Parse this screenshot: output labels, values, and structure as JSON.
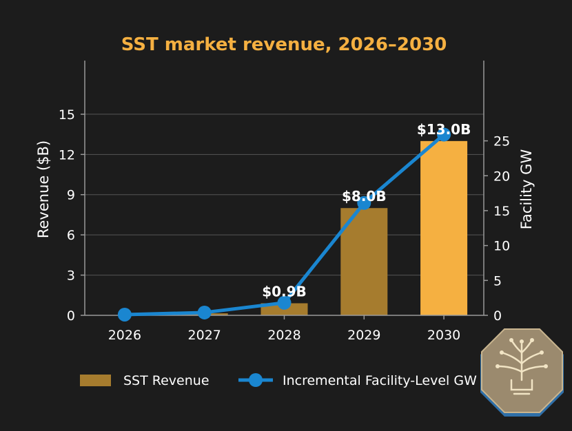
{
  "chart_data": {
    "type": "bar",
    "title": "SST market revenue, 2026–2030",
    "categories": [
      "2026",
      "2027",
      "2028",
      "2029",
      "2030"
    ],
    "ylabel": "Revenue ($B)",
    "y2label": "Facility GW",
    "ylim": [
      0,
      19
    ],
    "y2lim": [
      0,
      36.5
    ],
    "yticks": [
      0,
      3,
      6,
      9,
      12,
      15
    ],
    "y2ticks": [
      0,
      5,
      10,
      15,
      20,
      25
    ],
    "grid": true,
    "legend_position": "bottom",
    "series": [
      {
        "name": "SST Revenue",
        "type": "bar",
        "axis": "left",
        "values": [
          0.0,
          0.15,
          0.9,
          8.0,
          13.0
        ],
        "data_labels": [
          "",
          "",
          "$0.9B",
          "$8.0B",
          "$13.0B"
        ],
        "colors": [
          "#a67c2e",
          "#a67c2e",
          "#a67c2e",
          "#a67c2e",
          "#f5b041"
        ]
      },
      {
        "name": "Incremental Facility-Level GW",
        "type": "line",
        "axis": "right",
        "values": [
          0.1,
          0.4,
          1.8,
          16.1,
          25.9
        ],
        "color": "#1a86d0"
      }
    ]
  },
  "colors": {
    "background": "#1c1c1c",
    "title": "#f5b041",
    "text": "#ffffff",
    "axis": "#9a9a9a",
    "grid": "#555555"
  },
  "logo": {
    "icon": "tree-bulb-badge-icon"
  }
}
